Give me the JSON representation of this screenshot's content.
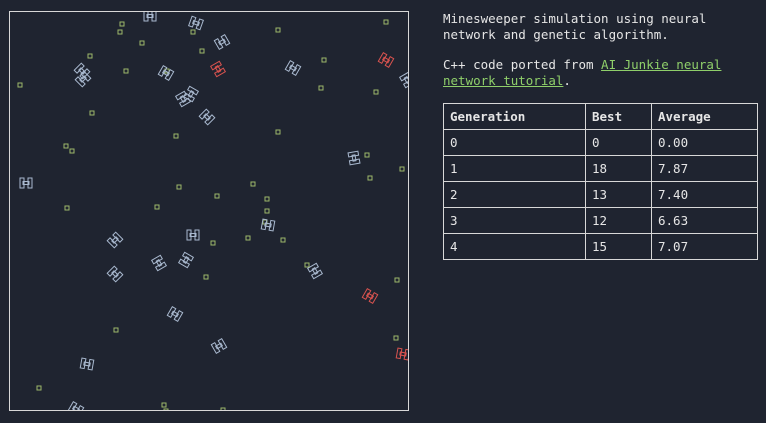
{
  "description": "Minesweeper simulation using neural network and genetic algorithm.",
  "credit": {
    "prefix": "C++ code ported from ",
    "link_text": "AI Junkie neural network tutorial",
    "suffix": "."
  },
  "table": {
    "headers": [
      "Generation",
      "Best",
      "Average"
    ],
    "rows": [
      [
        "0",
        "0",
        "0.00"
      ],
      [
        "1",
        "18",
        "7.87"
      ],
      [
        "2",
        "13",
        "7.40"
      ],
      [
        "3",
        "12",
        "6.63"
      ],
      [
        "4",
        "15",
        "7.07"
      ]
    ]
  },
  "colors": {
    "background": "#1f2430",
    "sweeper": "#a9b9cf",
    "best_sweeper": "#d9534f",
    "mine": "#9db86a",
    "link": "#8fcf6a"
  },
  "icons": {
    "sweeper": "tank-sweeper-icon",
    "mine": "mine-square-icon"
  }
}
